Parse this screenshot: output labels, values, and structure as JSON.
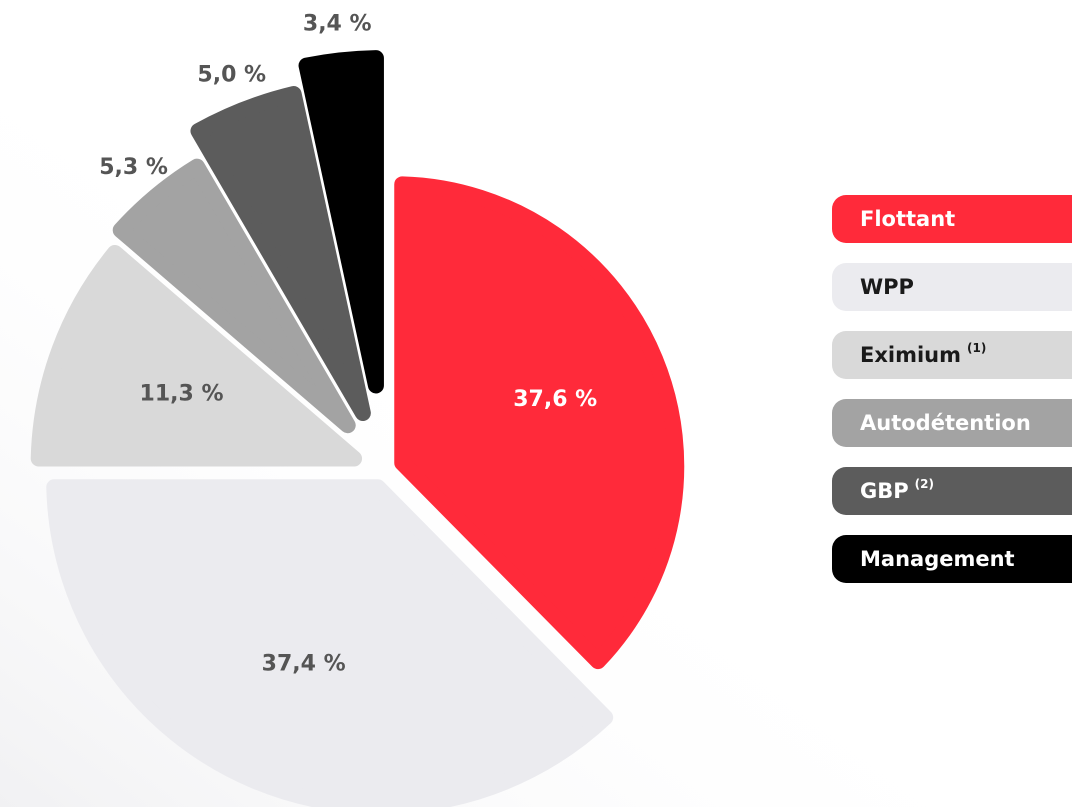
{
  "chart_data": {
    "type": "pie",
    "categories": [
      "Flottant",
      "WPP",
      "Eximium",
      "Autodétention",
      "GBP",
      "Management"
    ],
    "category_notes": [
      null,
      null,
      "(1)",
      null,
      "(2)",
      null
    ],
    "values": [
      37.6,
      37.4,
      11.3,
      5.3,
      5.0,
      3.4
    ],
    "value_labels": [
      "37,6 %",
      "37,4 %",
      "11,3 %",
      "5,3 %",
      "5,0 %",
      "3,4 %"
    ],
    "colors": [
      "#ff2a3a",
      "#ebebef",
      "#d9d9d9",
      "#a3a3a3",
      "#5c5c5c",
      "#000000"
    ],
    "legend": "right"
  }
}
